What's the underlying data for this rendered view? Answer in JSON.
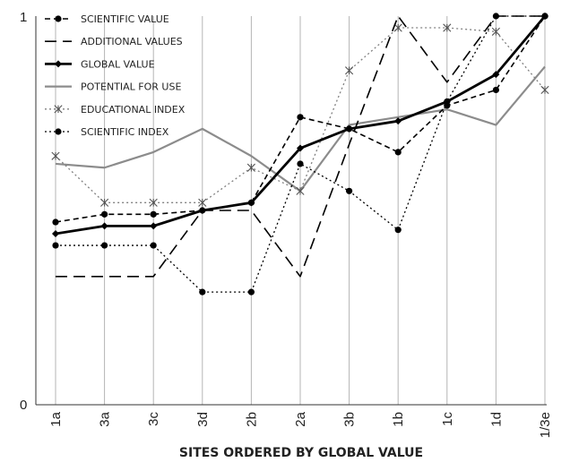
{
  "chart_data": {
    "type": "line",
    "xlabel": "SITES ORDERED BY GLOBAL VALUE",
    "ylabel": "",
    "ylim": [
      0,
      1
    ],
    "y_tick_labels": [
      "0",
      "1"
    ],
    "categories": [
      "1a",
      "3a",
      "3c",
      "3d",
      "2b",
      "2a",
      "3b",
      "1b",
      "1c",
      "1d",
      "1/3e"
    ],
    "grid": "vertical lines at each category",
    "legend_position": "top-left",
    "series": [
      {
        "name": "SCIENTIFIC VALUE",
        "style": "dashed",
        "marker": "dot",
        "color": "#000000",
        "values": [
          0.47,
          0.49,
          0.49,
          0.5,
          0.52,
          0.74,
          0.71,
          0.65,
          0.77,
          0.81,
          1.0
        ]
      },
      {
        "name": "ADDITIONAL VALUES",
        "style": "long-dashed",
        "marker": "none",
        "color": "#000000",
        "values": [
          0.33,
          0.33,
          0.33,
          0.5,
          0.5,
          0.33,
          0.67,
          1.0,
          0.83,
          1.0,
          1.0
        ]
      },
      {
        "name": "GLOBAL VALUE",
        "style": "solid-thick",
        "marker": "diamond",
        "color": "#000000",
        "values": [
          0.44,
          0.46,
          0.46,
          0.5,
          0.52,
          0.66,
          0.71,
          0.73,
          0.78,
          0.85,
          1.0
        ]
      },
      {
        "name": "POTENTIAL FOR USE",
        "style": "solid",
        "marker": "none",
        "color": "#8c8c8c",
        "values": [
          0.62,
          0.61,
          0.65,
          0.71,
          0.64,
          0.55,
          0.72,
          0.74,
          0.76,
          0.72,
          0.87
        ]
      },
      {
        "name": "EDUCATIONAL INDEX",
        "style": "dotted",
        "marker": "asterisk",
        "color": "#808080",
        "values": [
          0.64,
          0.52,
          0.52,
          0.52,
          0.61,
          0.55,
          0.86,
          0.97,
          0.97,
          0.96,
          0.81
        ]
      },
      {
        "name": "SCIENTIFIC INDEX",
        "style": "dotted",
        "marker": "dot",
        "color": "#000000",
        "values": [
          0.41,
          0.41,
          0.41,
          0.29,
          0.29,
          0.62,
          0.55,
          0.45,
          0.78,
          1.0,
          1.0
        ]
      }
    ]
  }
}
